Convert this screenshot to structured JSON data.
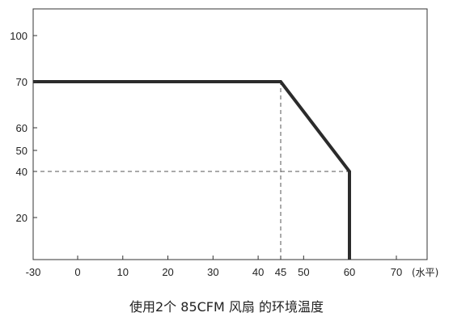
{
  "chart_data": {
    "type": "line",
    "title": "",
    "caption": "使用2个 85CFM 风扇 的环境温度",
    "xlabel": "(水平)",
    "ylabel": "",
    "xlim": [
      -30,
      80
    ],
    "ylim": [
      0,
      120
    ],
    "x_ticks": [
      -30,
      0,
      10,
      20,
      30,
      40,
      45,
      50,
      60,
      70
    ],
    "y_ticks": [
      20,
      40,
      50,
      60,
      70,
      100
    ],
    "grid": false,
    "legend": "none",
    "series": [
      {
        "values": [
          [
            -30,
            70
          ],
          [
            45,
            70
          ],
          [
            60,
            40
          ],
          [
            60,
            0
          ]
        ]
      }
    ],
    "reference_lines": [
      {
        "points": [
          [
            45,
            0
          ],
          [
            45,
            70
          ]
        ],
        "style": "dashed"
      },
      {
        "points": [
          [
            -30,
            40
          ],
          [
            60,
            40
          ]
        ],
        "style": "dashed"
      }
    ],
    "colors": {
      "line": "#2b2b2b",
      "axis": "#333333",
      "dash": "#555555"
    }
  }
}
